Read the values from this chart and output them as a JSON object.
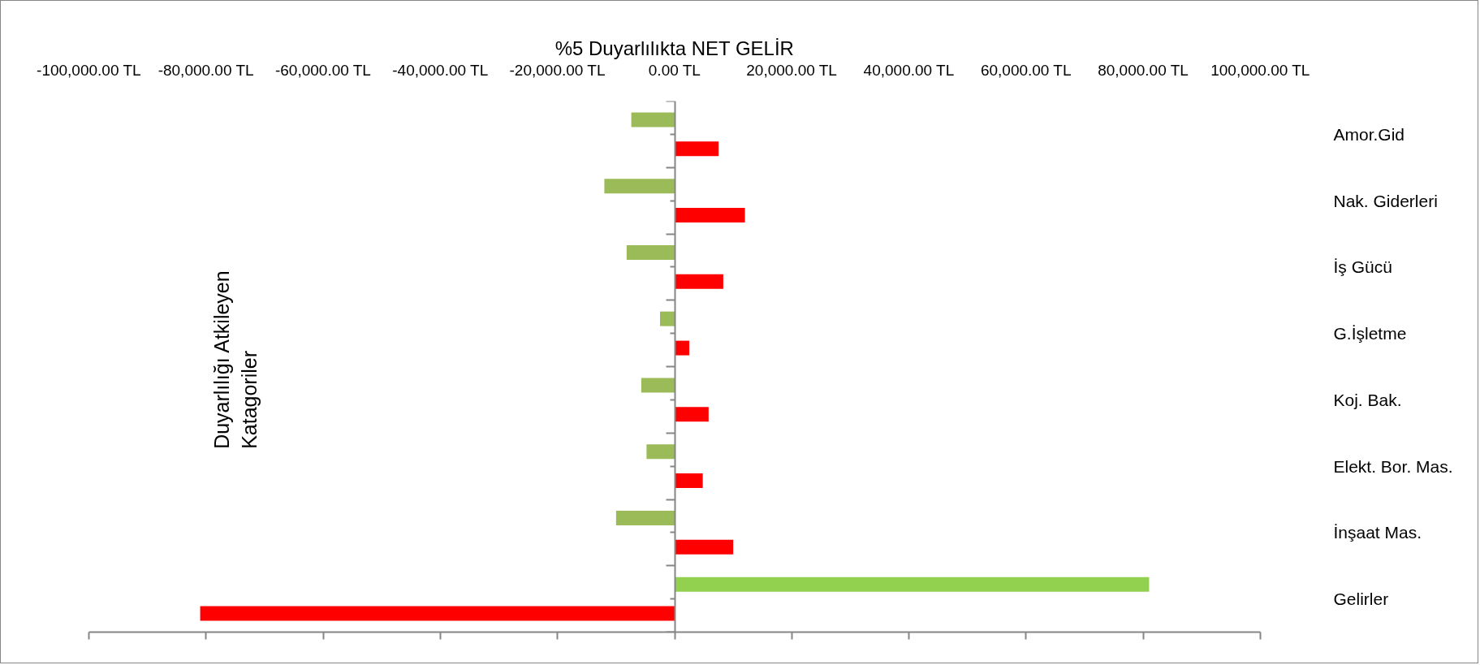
{
  "chart_data": {
    "type": "bar",
    "orientation": "horizontal",
    "xlabel": "%5 Duyarlılıkta NET GELİR",
    "ylabel": "Duyarlılığı Atkileyen Katagoriler",
    "categories": [
      "Amor.Gid",
      "Nak. Giderleri",
      "İş Gücü",
      "G.İşletme",
      "Koj. Bak.",
      "Elekt. Bor. Mas.",
      "İnşaat Mas.",
      "Gelirler"
    ],
    "series": [
      {
        "colors": [
          "#9bbb59",
          "#9bbb59",
          "#9bbb59",
          "#9bbb59",
          "#9bbb59",
          "#9bbb59",
          "#9bbb59",
          "#92d050"
        ],
        "values": [
          -7400,
          -12000,
          -8200,
          -2500,
          -5700,
          -4800,
          -10000,
          81000
        ]
      },
      {
        "color": "#ff0000",
        "values": [
          7500,
          12000,
          8300,
          2500,
          5800,
          4800,
          10000,
          -81000
        ]
      }
    ],
    "xlim": [
      -100000,
      100000
    ],
    "xticks": [
      {
        "value": -100000,
        "label": "-100,000.00 TL"
      },
      {
        "value": -80000,
        "label": "-80,000.00 TL"
      },
      {
        "value": -60000,
        "label": "-60,000.00 TL"
      },
      {
        "value": -40000,
        "label": "-40,000.00 TL"
      },
      {
        "value": -20000,
        "label": "-20,000.00 TL"
      },
      {
        "value": 0,
        "label": "0.00 TL"
      },
      {
        "value": 20000,
        "label": "20,000.00 TL"
      },
      {
        "value": 40000,
        "label": "40,000.00 TL"
      },
      {
        "value": 60000,
        "label": "60,000.00 TL"
      },
      {
        "value": 80000,
        "label": "80,000.00 TL"
      },
      {
        "value": 100000,
        "label": "100,000.00 TL"
      }
    ]
  }
}
